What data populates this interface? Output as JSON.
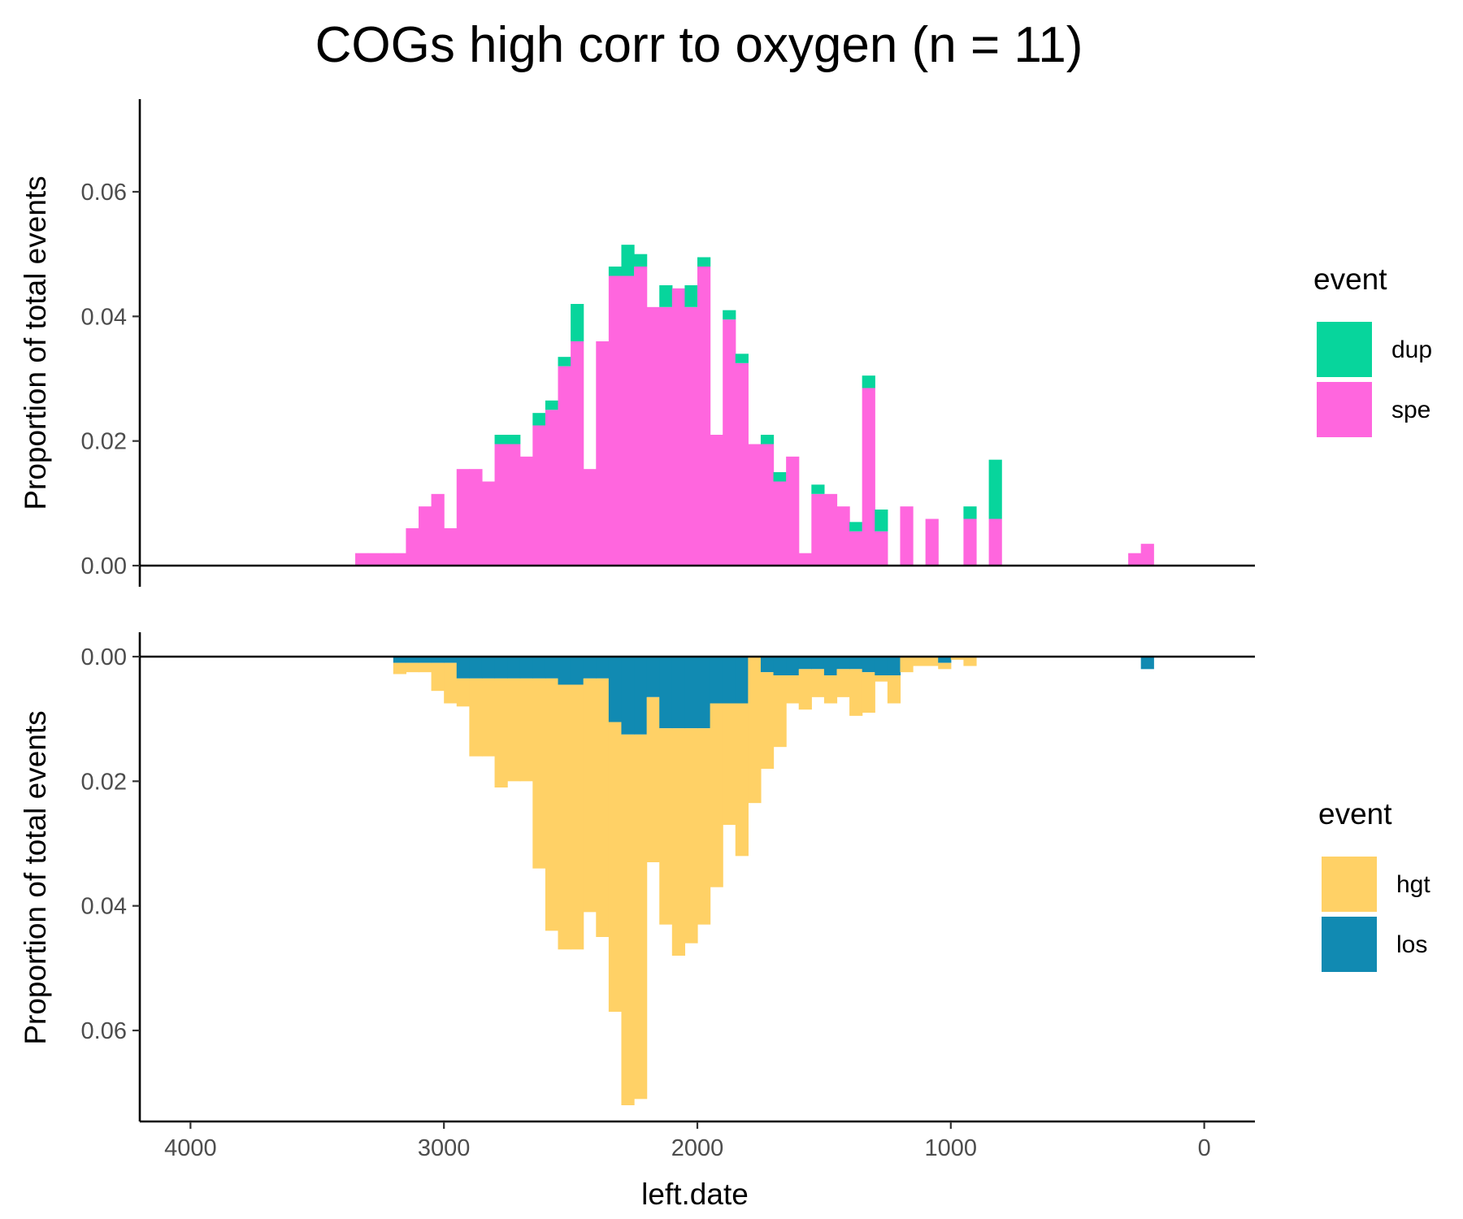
{
  "title": "COGs high corr to oxygen (n = 11)",
  "colors": {
    "dup": "#07D59C",
    "spe": "#FF66DE",
    "hgt": "#FFD166",
    "los": "#118AB2"
  },
  "chart_data": [
    {
      "type": "bar",
      "stacked": true,
      "panel": "top",
      "title": "COGs high corr to oxygen (n = 11)",
      "xlabel": "left.date",
      "ylabel": "Proportion of total events",
      "x_reversed": true,
      "xlim": [
        4200,
        -200
      ],
      "ylim": [
        -0.003,
        0.075
      ],
      "bin_width": 50,
      "yticks": [
        "0.00",
        "0.02",
        "0.04",
        "0.06"
      ],
      "ytick_values": [
        0,
        0.02,
        0.04,
        0.06
      ],
      "legend": {
        "title": "event",
        "entries": [
          "dup",
          "spe"
        ],
        "position": "right"
      },
      "x": [
        3325,
        3275,
        3225,
        3175,
        3125,
        3075,
        3025,
        2975,
        2925,
        2875,
        2825,
        2775,
        2725,
        2675,
        2625,
        2575,
        2525,
        2475,
        2425,
        2375,
        2325,
        2275,
        2225,
        2175,
        2125,
        2075,
        2025,
        1975,
        1925,
        1875,
        1825,
        1775,
        1725,
        1675,
        1625,
        1575,
        1525,
        1475,
        1425,
        1375,
        1325,
        1275,
        1225,
        1175,
        1125,
        1075,
        1025,
        975,
        925,
        875,
        825,
        775,
        725,
        675,
        625,
        575,
        525,
        475,
        425,
        375,
        325,
        275,
        225
      ],
      "series": [
        {
          "name": "spe",
          "values": [
            0.002,
            0.002,
            0.002,
            0.002,
            0.006,
            0.0095,
            0.0115,
            0.006,
            0.0155,
            0.0155,
            0.0135,
            0.0195,
            0.0195,
            0.0175,
            0.0225,
            0.025,
            0.032,
            0.036,
            0.0155,
            0.036,
            0.0465,
            0.0465,
            0.048,
            0.0415,
            0.0415,
            0.0445,
            0.0415,
            0.048,
            0.021,
            0.0395,
            0.0325,
            0.0195,
            0.0195,
            0.0135,
            0.0175,
            0.002,
            0.0115,
            0.0115,
            0.0095,
            0.0055,
            0.0285,
            0.0055,
            0,
            0.0095,
            0,
            0.0075,
            0,
            0,
            0.0075,
            0,
            0.0075,
            0,
            0,
            0,
            0,
            0,
            0,
            0,
            0,
            0,
            0,
            0.002,
            0.0035
          ]
        },
        {
          "name": "dup",
          "values": [
            0,
            0,
            0,
            0,
            0,
            0,
            0,
            0,
            0,
            0,
            0,
            0.0015,
            0.0015,
            0,
            0.002,
            0.0015,
            0.0015,
            0.006,
            0,
            0,
            0.0015,
            0.005,
            0.002,
            0,
            0.0035,
            0,
            0.0035,
            0.0015,
            0,
            0.0015,
            0.0015,
            0,
            0.0015,
            0.0015,
            0,
            0,
            0.0015,
            0,
            0,
            0.0015,
            0.002,
            0.0035,
            0,
            0,
            0,
            0,
            0,
            0,
            0.002,
            0,
            0.0095,
            0,
            0,
            0,
            0,
            0,
            0,
            0,
            0,
            0,
            0,
            0,
            0
          ]
        }
      ]
    },
    {
      "type": "bar",
      "stacked": true,
      "panel": "bottom",
      "xlabel": "left.date",
      "ylabel": "Proportion of total events",
      "x_reversed": true,
      "y_reversed": true,
      "xlim": [
        4200,
        -200
      ],
      "ylim": [
        -0.0028,
        0.0755
      ],
      "bin_width": 50,
      "xticks": [
        "4000",
        "3000",
        "2000",
        "1000",
        "0"
      ],
      "xtick_values": [
        4000,
        3000,
        2000,
        1000,
        0
      ],
      "yticks": [
        "0.00",
        "0.02",
        "0.04",
        "0.06"
      ],
      "ytick_values": [
        0,
        0.02,
        0.04,
        0.06
      ],
      "legend": {
        "title": "event",
        "entries": [
          "hgt",
          "los"
        ],
        "position": "right"
      },
      "x": [
        3175,
        3125,
        3075,
        3025,
        2975,
        2925,
        2875,
        2825,
        2775,
        2725,
        2675,
        2625,
        2575,
        2525,
        2475,
        2425,
        2375,
        2325,
        2275,
        2225,
        2175,
        2125,
        2075,
        2025,
        1975,
        1925,
        1875,
        1825,
        1775,
        1725,
        1675,
        1625,
        1575,
        1525,
        1475,
        1425,
        1375,
        1325,
        1275,
        1225,
        1175,
        1125,
        1075,
        1025,
        975,
        925,
        875,
        825,
        775,
        725,
        675,
        625,
        575,
        525,
        475,
        425,
        375,
        325,
        275,
        225
      ],
      "series": [
        {
          "name": "los",
          "values": [
            0.001,
            0.001,
            0.001,
            0.001,
            0.001,
            0.0035,
            0.0035,
            0.0035,
            0.0035,
            0.0035,
            0.0035,
            0.0035,
            0.0035,
            0.0045,
            0.0045,
            0.0035,
            0.0035,
            0.0105,
            0.0125,
            0.0125,
            0.0065,
            0.0115,
            0.0115,
            0.0115,
            0.0115,
            0.0075,
            0.0075,
            0.0075,
            0.0,
            0.0025,
            0.003,
            0.003,
            0.002,
            0.002,
            0.003,
            0.002,
            0.002,
            0.0025,
            0.003,
            0.003,
            0.0,
            0.0,
            0.0,
            0.001,
            0.0,
            0.0,
            0.0,
            0.0,
            0.0,
            0.0,
            0.0,
            0.0,
            0.0,
            0.0,
            0.0,
            0.0,
            0.0,
            0.0,
            0.0,
            0.002
          ]
        },
        {
          "name": "hgt",
          "values": [
            0.0018,
            0.0015,
            0.0015,
            0.0045,
            0.0065,
            0.0045,
            0.0125,
            0.0125,
            0.0175,
            0.0165,
            0.0165,
            0.0305,
            0.0405,
            0.0425,
            0.0425,
            0.0375,
            0.0415,
            0.0465,
            0.0595,
            0.0585,
            0.0265,
            0.0315,
            0.0365,
            0.0345,
            0.0315,
            0.0295,
            0.0195,
            0.0245,
            0.0235,
            0.0155,
            0.0115,
            0.0045,
            0.0065,
            0.0045,
            0.0045,
            0.0045,
            0.0075,
            0.0065,
            0.001,
            0.0045,
            0.0025,
            0.0015,
            0.0015,
            0.001,
            0.0005,
            0.0015,
            0.0,
            0.0,
            0.0,
            0.0,
            0.0,
            0.0,
            0.0,
            0.0,
            0.0,
            0.0,
            0.0,
            0.0,
            0.0,
            0.0
          ]
        }
      ]
    }
  ]
}
